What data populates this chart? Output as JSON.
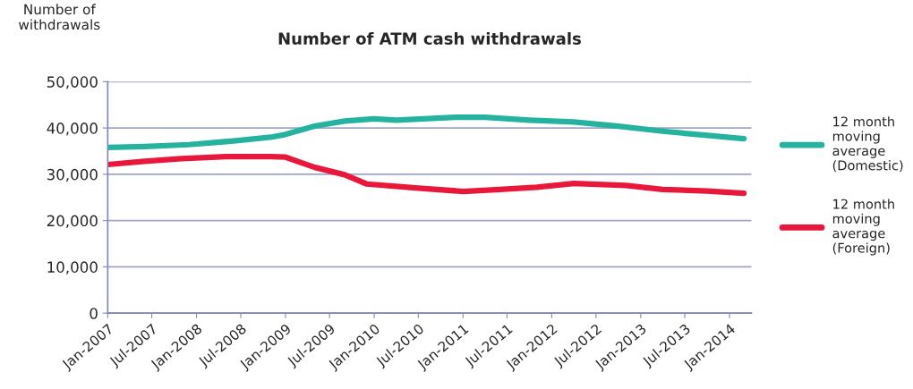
{
  "chart_data": {
    "type": "line",
    "title": "Number of ATM cash withdrawals",
    "ylabel": "Number of\nwithdrawals",
    "series": [
      {
        "name": "12 month\nmoving\naverage\n(Domestic)",
        "color": "#25b3a0",
        "x": [
          "2007-01",
          "2007-06",
          "2007-12",
          "2008-06",
          "2008-11",
          "2009-01",
          "2009-05",
          "2009-09",
          "2010-01",
          "2010-04",
          "2010-12",
          "2011-04",
          "2011-10",
          "2012-04",
          "2012-10",
          "2013-04",
          "2013-10",
          "2014-03"
        ],
        "values": [
          35800,
          36000,
          36400,
          37200,
          38000,
          38600,
          40400,
          41500,
          42000,
          41700,
          42300,
          42300,
          41700,
          41300,
          40400,
          39300,
          38400,
          37700
        ]
      },
      {
        "name": "12 month\nmoving\naverage\n(Foreign)",
        "color": "#e8173c",
        "x": [
          "2007-01",
          "2007-06",
          "2007-11",
          "2008-05",
          "2008-11",
          "2009-01",
          "2009-05",
          "2009-09",
          "2009-12",
          "2010-04",
          "2010-07",
          "2011-01",
          "2011-06",
          "2011-11",
          "2012-04",
          "2012-11",
          "2013-04",
          "2013-10",
          "2014-03"
        ],
        "values": [
          32100,
          32800,
          33400,
          33800,
          33800,
          33700,
          31500,
          29900,
          27900,
          27400,
          27000,
          26300,
          26700,
          27200,
          28000,
          27600,
          26700,
          26400,
          25900
        ]
      }
    ],
    "xlim": [
      "2007-01",
      "2014-04"
    ],
    "xticks": [
      {
        "value": "2007-01",
        "label": "Jan-2007"
      },
      {
        "value": "2007-07",
        "label": "Jul-2007"
      },
      {
        "value": "2008-01",
        "label": "Jan-2008"
      },
      {
        "value": "2008-07",
        "label": "Jul-2008"
      },
      {
        "value": "2009-01",
        "label": "Jan-2009"
      },
      {
        "value": "2009-07",
        "label": "Jul-2009"
      },
      {
        "value": "2010-01",
        "label": "Jan-2010"
      },
      {
        "value": "2010-07",
        "label": "Jul-2010"
      },
      {
        "value": "2011-01",
        "label": "Jan-2011"
      },
      {
        "value": "2011-07",
        "label": "Jul-2011"
      },
      {
        "value": "2012-01",
        "label": "Jan-2012"
      },
      {
        "value": "2012-07",
        "label": "Jul-2012"
      },
      {
        "value": "2013-01",
        "label": "Jan-2013"
      },
      {
        "value": "2013-07",
        "label": "Jul-2013"
      },
      {
        "value": "2014-01",
        "label": "Jan-2014"
      }
    ],
    "ylim": [
      0,
      50000
    ],
    "yticks": [
      {
        "value": 0,
        "label": "0"
      },
      {
        "value": 10000,
        "label": "10,000"
      },
      {
        "value": 20000,
        "label": "20,000"
      },
      {
        "value": 30000,
        "label": "30,000"
      },
      {
        "value": 40000,
        "label": "40,000"
      },
      {
        "value": 50000,
        "label": "50,000"
      }
    ],
    "grid": "y",
    "legend": "right",
    "line_style": "solid",
    "marker": "none"
  }
}
